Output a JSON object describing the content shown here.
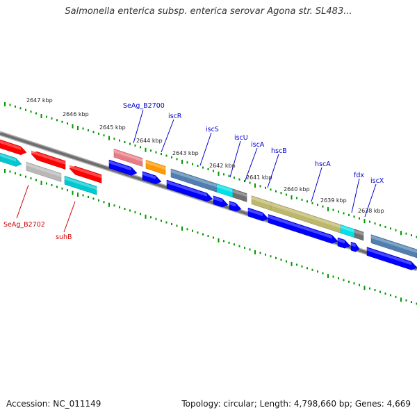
{
  "header": {
    "title": "Salmonella enterica subsp. enterica serovar Agona str. SL483..."
  },
  "footer": {
    "accession": "Accession: NC_011149",
    "summary": "Topology: circular; Length: 4,798,660 bp; Genes: 4,669"
  },
  "ruler": {
    "ticks": [
      {
        "label": "2647 kbp"
      },
      {
        "label": "2646 kbp"
      },
      {
        "label": "2645 kbp"
      },
      {
        "label": "2644 kbp"
      },
      {
        "label": "2643 kbp"
      },
      {
        "label": "2642 kbp"
      },
      {
        "label": "2641 kbp"
      },
      {
        "label": "2640 kbp"
      },
      {
        "label": "2639 kbp"
      },
      {
        "label": "2638 kbp"
      }
    ]
  },
  "genes": [
    {
      "name": "SeAg_B2700",
      "strand": "forward",
      "color": "#e87c84"
    },
    {
      "name": "iscR",
      "strand": "forward",
      "color": "#ff9900"
    },
    {
      "name": "iscS",
      "strand": "forward",
      "color": "#4f7fb0"
    },
    {
      "name": "iscU",
      "strand": "forward",
      "color": "#00e0e8"
    },
    {
      "name": "iscA",
      "strand": "forward",
      "color": "#707070"
    },
    {
      "name": "hscB",
      "strand": "forward",
      "color": "#bdb76b"
    },
    {
      "name": "hscA",
      "strand": "forward",
      "color": "#bdb76b"
    },
    {
      "name": "fdx",
      "strand": "forward",
      "color": "#00e0e8"
    },
    {
      "name": "iscX",
      "strand": "forward",
      "color": "#707070"
    },
    {
      "name": "SeAg_B2702",
      "strand": "reverse",
      "color": "#ff0000"
    },
    {
      "name": "suhB",
      "strand": "reverse",
      "color": "#00c8d0"
    }
  ],
  "colors": {
    "forward_label": "#0000cc",
    "reverse_label": "#cc0000",
    "cds_arrow": "#0000ff",
    "backbone": "#777777",
    "gc_skew": "#009900"
  }
}
